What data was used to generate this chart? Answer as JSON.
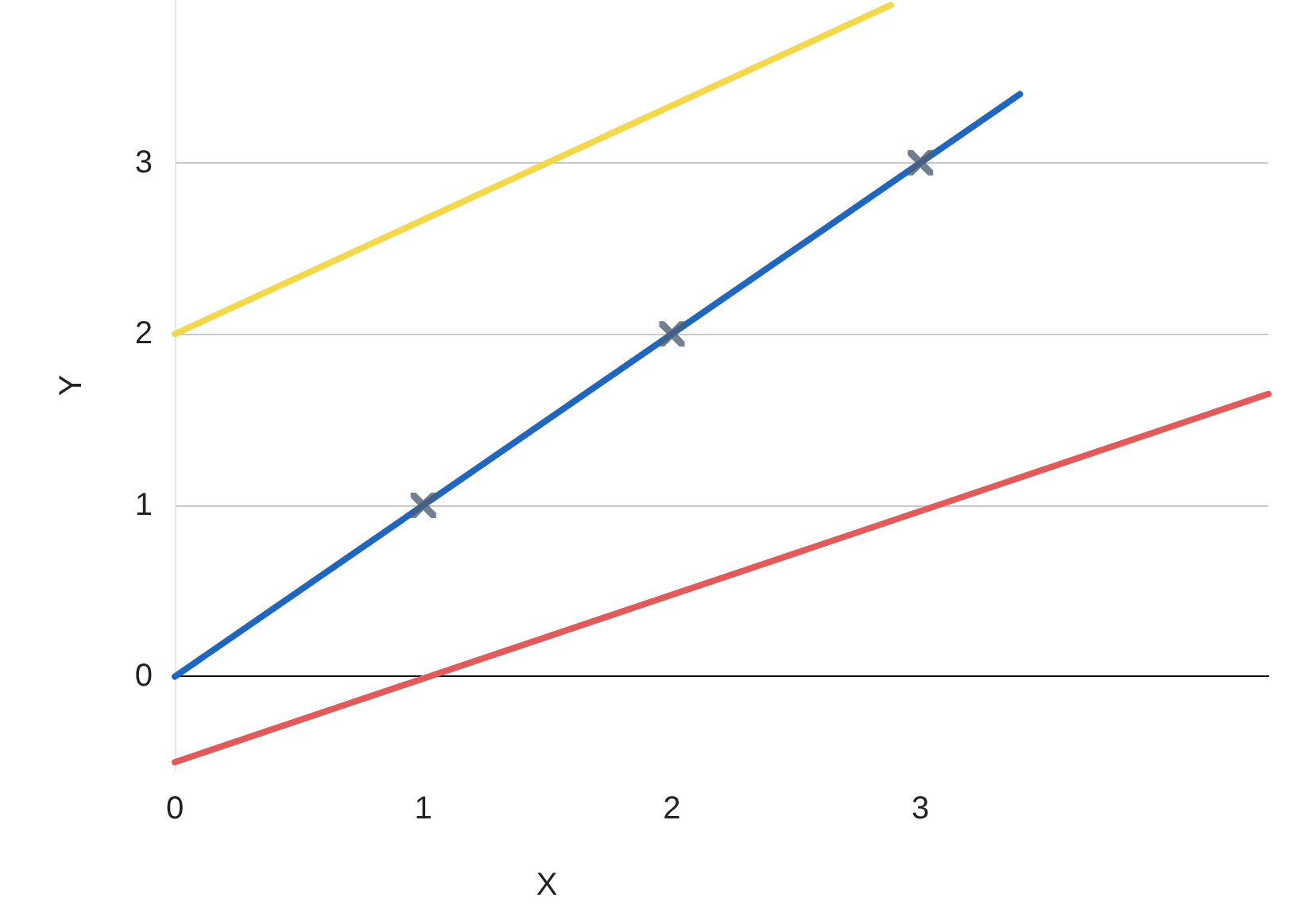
{
  "chart_data": {
    "type": "line",
    "xlabel": "X",
    "ylabel": "Y",
    "xlim": [
      0,
      4.4
    ],
    "ylim": [
      -0.55,
      3.95
    ],
    "xticks": [
      0,
      1,
      2,
      3
    ],
    "yticks": [
      0,
      1,
      2,
      3
    ],
    "grid": "y",
    "series": [
      {
        "color": "#f2d84a",
        "x": [
          0,
          2.88
        ],
        "values": [
          2,
          3.92
        ],
        "marker": "none"
      },
      {
        "color": "#1f66c1",
        "x": [
          0,
          3.4
        ],
        "values": [
          0,
          3.4
        ],
        "marker": "none"
      },
      {
        "color": "#e15b5b",
        "x": [
          0,
          4.4
        ],
        "values": [
          -0.5,
          1.65
        ],
        "marker": "none"
      },
      {
        "type": "scatter",
        "color": "#4d6075",
        "x": [
          1,
          2,
          3
        ],
        "values": [
          1,
          2,
          3
        ],
        "marker": "cross"
      }
    ]
  }
}
